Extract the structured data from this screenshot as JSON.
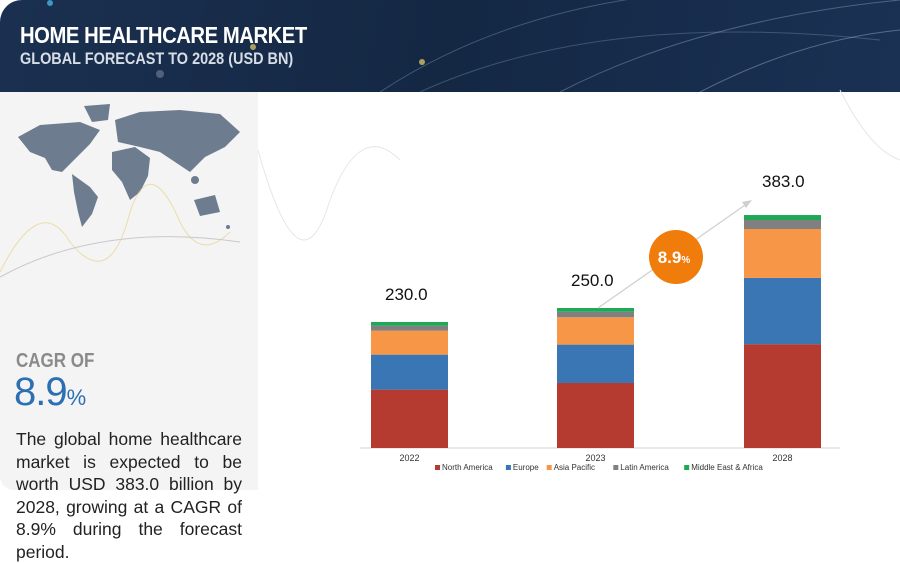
{
  "header": {
    "title": "HOME HEALTHCARE MARKET",
    "subtitle": "GLOBAL FORECAST TO 2028 (USD BN)"
  },
  "summary": {
    "cagr_label": "CAGR OF",
    "cagr_value": "8.9",
    "cagr_unit": "%",
    "description": "The global home healthcare market is expected to be worth USD 383.0 billion by 2028, growing at a CAGR of 8.9% during the forecast period."
  },
  "colors": {
    "header_bg": "#172b48",
    "accent_blue": "#2c6fb3",
    "badge": "#f07c0c"
  },
  "chart_data": {
    "type": "bar",
    "stacked": true,
    "title": "Home Healthcare Market, Global Forecast to 2028 (USD BN)",
    "categories": [
      "2022",
      "2023",
      "2028"
    ],
    "totals": [
      230.0,
      250.0,
      383.0
    ],
    "total_labels": [
      "230.0",
      "250.0",
      "383.0"
    ],
    "series": [
      {
        "name": "North America",
        "color": "#b53a30",
        "values": [
          106.5,
          116.1,
          170.7
        ]
      },
      {
        "name": "Europe",
        "color": "#3a76b4",
        "values": [
          63.9,
          68.5,
          108.9
        ]
      },
      {
        "name": "Asia Pacific",
        "color": "#f79646",
        "values": [
          43.8,
          48.9,
          80.4
        ]
      },
      {
        "name": "Latin America",
        "color": "#808080",
        "values": [
          9.1,
          9.8,
          14.8
        ]
      },
      {
        "name": "Middle East & Africa",
        "color": "#1fa855",
        "values": [
          6.7,
          6.7,
          8.2
        ]
      }
    ],
    "annotation": {
      "text": "8.9",
      "unit": "%"
    },
    "legend_position": "bottom",
    "xlabel": "",
    "ylabel": "",
    "grid": false
  }
}
